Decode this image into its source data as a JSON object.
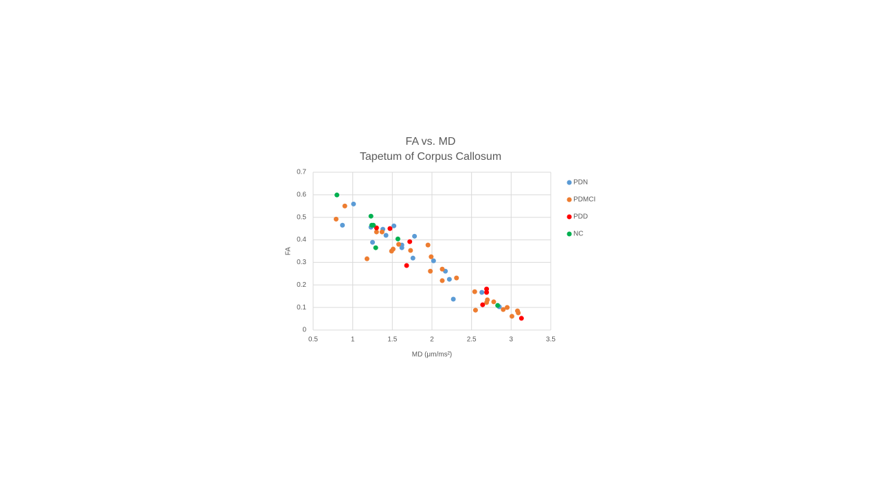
{
  "chart_data": {
    "type": "scatter",
    "title": "FA vs. MD",
    "subtitle": "Tapetum of Corpus Callosum",
    "x_label": "MD (μm/ms²)",
    "y_label": "FA",
    "xlim": [
      0.5,
      3.5
    ],
    "xticks": [
      0.5,
      1,
      1.5,
      2,
      2.5,
      3,
      3.5
    ],
    "ylim": [
      0,
      0.7
    ],
    "yticks": [
      0,
      0.1,
      0.2,
      0.3,
      0.4,
      0.5,
      0.6,
      0.7
    ],
    "grid": true,
    "legend": "right",
    "series": [
      {
        "name": "PDN",
        "color": "#5b9bd5",
        "x": [
          1.01,
          0.87,
          1.25,
          1.23,
          1.38,
          1.42,
          1.52,
          1.62,
          1.62,
          1.78,
          1.76,
          2.02,
          2.17,
          2.22,
          2.27,
          2.63,
          2.85
        ],
        "values": [
          0.559,
          0.465,
          0.389,
          0.456,
          0.447,
          0.42,
          0.462,
          0.377,
          0.365,
          0.416,
          0.319,
          0.307,
          0.261,
          0.225,
          0.137,
          0.167,
          0.103
        ]
      },
      {
        "name": "PDMCI",
        "color": "#ed7d31",
        "x": [
          0.79,
          0.9,
          1.18,
          1.3,
          1.37,
          1.49,
          1.51,
          1.58,
          1.73,
          1.95,
          1.99,
          1.98,
          2.13,
          2.13,
          2.31,
          2.54,
          2.55,
          2.69,
          2.7,
          2.78,
          2.9,
          2.95,
          3.01,
          3.08,
          3.09
        ],
        "values": [
          0.492,
          0.55,
          0.316,
          0.435,
          0.435,
          0.35,
          0.359,
          0.38,
          0.353,
          0.377,
          0.325,
          0.261,
          0.27,
          0.219,
          0.231,
          0.17,
          0.088,
          0.122,
          0.134,
          0.125,
          0.091,
          0.1,
          0.061,
          0.085,
          0.076
        ]
      },
      {
        "name": "PDD",
        "color": "#ff0000",
        "x": [
          1.3,
          1.47,
          1.72,
          1.68,
          2.69,
          2.69,
          2.64,
          3.13
        ],
        "values": [
          0.453,
          0.45,
          0.392,
          0.286,
          0.182,
          0.167,
          0.112,
          0.052
        ]
      },
      {
        "name": "NC",
        "color": "#00b050",
        "x": [
          0.8,
          1.23,
          1.24,
          1.26,
          1.29,
          1.57,
          2.83
        ],
        "values": [
          0.599,
          0.505,
          0.465,
          0.465,
          0.365,
          0.404,
          0.109
        ]
      }
    ]
  }
}
